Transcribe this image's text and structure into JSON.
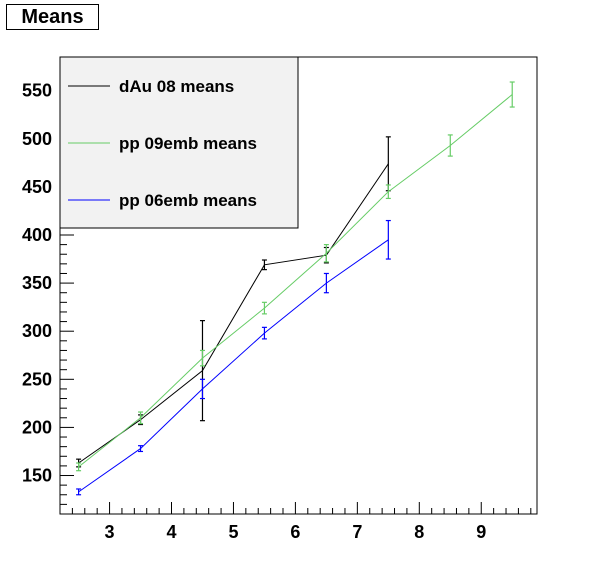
{
  "title": "Means",
  "chart_data": {
    "type": "line",
    "title": "Means",
    "xlabel": "",
    "ylabel": "",
    "xlim": [
      2.2,
      9.9
    ],
    "ylim": [
      110,
      585
    ],
    "x_ticks": [
      3,
      4,
      5,
      6,
      7,
      8,
      9
    ],
    "y_ticks": [
      150,
      200,
      250,
      300,
      350,
      400,
      450,
      500,
      550
    ],
    "grid": false,
    "legend_position": "top-left",
    "series": [
      {
        "name": "dAu 08 means",
        "color": "#000000",
        "x": [
          2.5,
          3.5,
          4.5,
          5.5,
          6.5,
          7.5
        ],
        "y": [
          163,
          208,
          259,
          369,
          379,
          474
        ],
        "err": [
          4,
          5,
          52,
          5,
          8,
          28
        ]
      },
      {
        "name": "pp 09emb means",
        "color": "#66cc66",
        "x": [
          2.5,
          3.5,
          4.5,
          5.5,
          6.5,
          7.5,
          8.5,
          9.5
        ],
        "y": [
          159,
          210,
          272,
          324,
          381,
          445,
          493,
          546
        ],
        "err": [
          4,
          6,
          8,
          6,
          9,
          7,
          11,
          13
        ]
      },
      {
        "name": "pp 06emb means",
        "color": "#0000ff",
        "x": [
          2.5,
          3.5,
          4.5,
          5.5,
          6.5,
          7.5
        ],
        "y": [
          133,
          178,
          240,
          298,
          350,
          395
        ],
        "err": [
          3,
          3,
          10,
          6,
          10,
          20
        ]
      }
    ]
  }
}
